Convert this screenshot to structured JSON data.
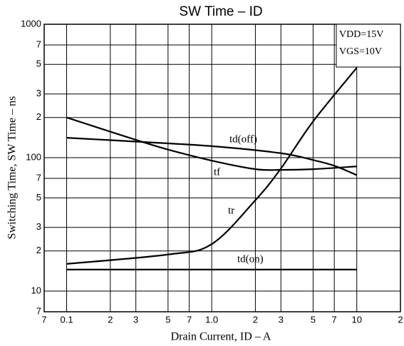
{
  "chart_data": {
    "type": "line",
    "title": "SW Time  –  ID",
    "xlabel": "Drain Current, ID  –  A",
    "ylabel": "Switching Time, SW Time  –  ns",
    "annotations": [
      "VDD=15V",
      "VGS=10V"
    ],
    "log_x": true,
    "log_y": true,
    "grid": true,
    "xlim": [
      0.07,
      20
    ],
    "ylim": [
      7,
      1000
    ],
    "xticks": [
      {
        "value": 0.07,
        "label": "7"
      },
      0.1,
      {
        "value": 0.2,
        "label": "2"
      },
      {
        "value": 0.3,
        "label": "3"
      },
      {
        "value": 0.5,
        "label": "5"
      },
      {
        "value": 0.7,
        "label": "7"
      },
      {
        "value": 1,
        "label": "1.0"
      },
      {
        "value": 2,
        "label": "2"
      },
      {
        "value": 3,
        "label": "3"
      },
      {
        "value": 5,
        "label": "5"
      },
      {
        "value": 7,
        "label": "7"
      },
      10,
      {
        "value": 20,
        "label": "2"
      }
    ],
    "yticks": [
      {
        "value": 7,
        "label": "7"
      },
      10,
      {
        "value": 20,
        "label": "2"
      },
      {
        "value": 30,
        "label": "3"
      },
      {
        "value": 50,
        "label": "5"
      },
      {
        "value": 70,
        "label": "7"
      },
      100,
      {
        "value": 200,
        "label": "2"
      },
      {
        "value": 300,
        "label": "3"
      },
      {
        "value": 500,
        "label": "5"
      },
      {
        "value": 700,
        "label": "7"
      },
      1000
    ],
    "series": [
      {
        "name": "td(off)",
        "color": "#000000",
        "x": [
          0.1,
          0.3,
          1,
          3,
          5,
          7,
          10
        ],
        "values": [
          141,
          132,
          122,
          108,
          96,
          87,
          74
        ]
      },
      {
        "name": "tf",
        "color": "#000000",
        "x": [
          0.1,
          0.3,
          0.5,
          1,
          2,
          3,
          5,
          10
        ],
        "values": [
          200,
          136,
          115,
          95,
          82,
          81,
          82,
          86
        ]
      },
      {
        "name": "tr",
        "color": "#000000",
        "x": [
          0.1,
          0.5,
          1,
          2,
          3,
          5,
          10
        ],
        "values": [
          16,
          18.8,
          22.5,
          48,
          83,
          187,
          472
        ]
      },
      {
        "name": "td(on)",
        "color": "#000000",
        "x": [
          0.1,
          10
        ],
        "values": [
          14.5,
          14.5
        ]
      }
    ]
  }
}
